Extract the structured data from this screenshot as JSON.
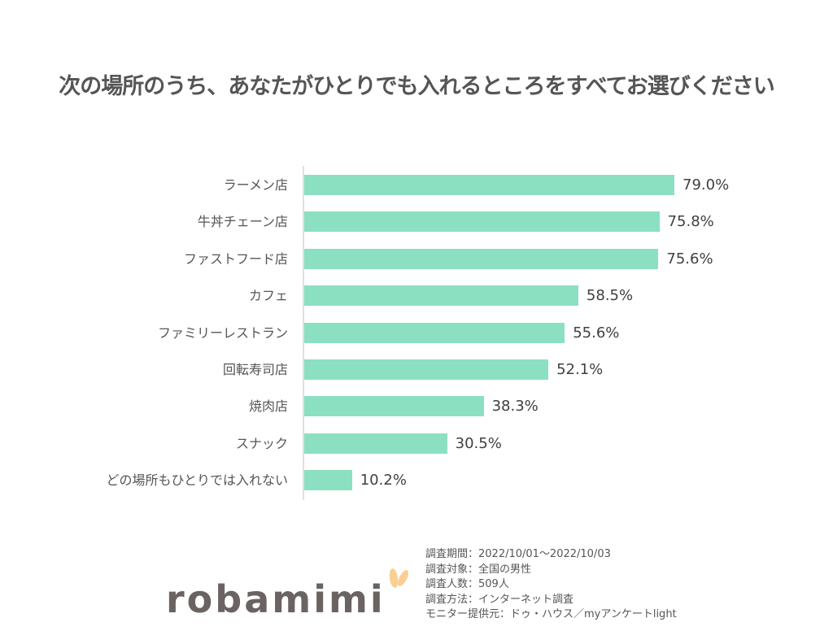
{
  "title": "次の場所のうち、あなたがひとりでも入れるところをすべてお選びください",
  "colors": {
    "bar": "#8ce0c2",
    "text": "#404040",
    "logo": "#6b6262",
    "logo_accent": "#f9cf92"
  },
  "chart_data": {
    "type": "bar",
    "orientation": "horizontal",
    "title": "次の場所のうち、あなたがひとりでも入れるところをすべてお選びください",
    "xlabel": "",
    "ylabel": "",
    "categories": [
      "ラーメン店",
      "牛丼チェーン店",
      "ファストフード店",
      "カフェ",
      "ファミリーレストラン",
      "回転寿司店",
      "焼肉店",
      "スナック",
      "どの場所もひとりでは入れない"
    ],
    "values": [
      79.0,
      75.8,
      75.6,
      58.5,
      55.6,
      52.1,
      38.3,
      30.5,
      10.2
    ],
    "value_labels": [
      "79.0%",
      "75.8%",
      "75.6%",
      "58.5%",
      "55.6%",
      "52.1%",
      "38.3%",
      "30.5%",
      "10.2%"
    ],
    "unit": "%",
    "grid": false,
    "legend": null
  },
  "footer": {
    "survey_lines": [
      "調査期間：2022/10/01～2022/10/03",
      "調査対象：全国の男性",
      "調査人数：509人",
      "調査方法：インターネット調査",
      "モニター提供元：ドゥ・ハウス／myアンケートlight"
    ],
    "logo_text": "robamimi"
  }
}
